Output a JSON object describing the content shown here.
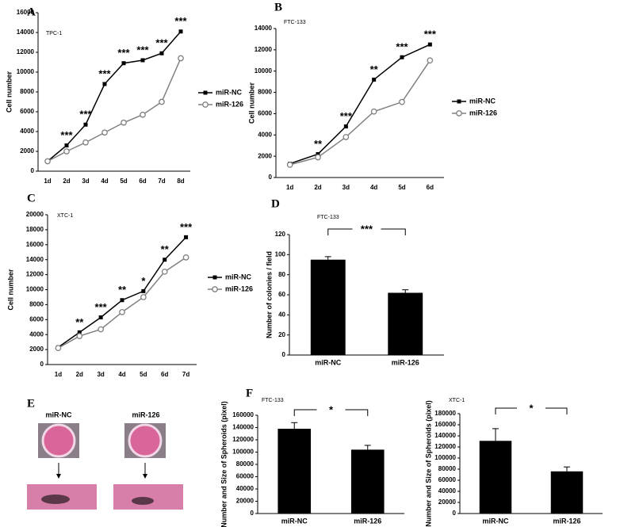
{
  "chart_data": [
    {
      "type": "line",
      "panel": "A",
      "title": "TPC-1",
      "ylabel": "Cell number",
      "categories": [
        "1d",
        "2d",
        "3d",
        "4d",
        "5d",
        "6d",
        "7d",
        "8d"
      ],
      "series": [
        {
          "name": "miR-NC",
          "color": "#000000",
          "marker": "square",
          "values": [
            1000,
            2600,
            4700,
            8800,
            10900,
            11200,
            11900,
            14100
          ]
        },
        {
          "name": "miR-126",
          "color": "#808080",
          "marker": "circle",
          "values": [
            1000,
            2000,
            2900,
            3900,
            4900,
            5700,
            7000,
            11400
          ]
        }
      ],
      "ylim": [
        0,
        16000
      ],
      "yticks": [
        0,
        2000,
        4000,
        6000,
        8000,
        10000,
        12000,
        14000,
        16000
      ],
      "significance": [
        null,
        "***",
        "***",
        "***",
        "***",
        "***",
        "***",
        "***"
      ],
      "legend": "right"
    },
    {
      "type": "line",
      "panel": "B",
      "title": "FTC-133",
      "ylabel": "Cell number",
      "categories": [
        "1d",
        "2d",
        "3d",
        "4d",
        "5d",
        "6d"
      ],
      "series": [
        {
          "name": "miR-NC",
          "color": "#000000",
          "marker": "square",
          "values": [
            1300,
            2200,
            4800,
            9200,
            11300,
            12500
          ]
        },
        {
          "name": "miR-126",
          "color": "#808080",
          "marker": "circle",
          "values": [
            1200,
            1900,
            3800,
            6200,
            7100,
            11000
          ]
        }
      ],
      "ylim": [
        0,
        14000
      ],
      "yticks": [
        0,
        2000,
        4000,
        6000,
        8000,
        10000,
        12000,
        14000
      ],
      "significance": [
        null,
        "**",
        "***",
        "**",
        "***",
        "***"
      ],
      "legend": "right"
    },
    {
      "type": "line",
      "panel": "C",
      "title": "XTC-1",
      "ylabel": "Cell number",
      "categories": [
        "1d",
        "2d",
        "3d",
        "4d",
        "5d",
        "6d",
        "7d"
      ],
      "series": [
        {
          "name": "miR-NC",
          "color": "#000000",
          "marker": "square",
          "values": [
            2300,
            4300,
            6300,
            8600,
            9800,
            14000,
            17000
          ]
        },
        {
          "name": "miR-126",
          "color": "#808080",
          "marker": "circle",
          "values": [
            2200,
            3800,
            4700,
            7000,
            9000,
            12400,
            14300
          ]
        }
      ],
      "ylim": [
        0,
        20000
      ],
      "yticks": [
        0,
        2000,
        4000,
        6000,
        8000,
        10000,
        12000,
        14000,
        16000,
        18000,
        20000
      ],
      "significance": [
        null,
        "**",
        "***",
        "**",
        "*",
        "**",
        "***"
      ],
      "legend": "right"
    },
    {
      "type": "bar",
      "panel": "D",
      "title": "FTC-133",
      "ylabel": "Number of colonies / field",
      "categories": [
        "miR-NC",
        "miR-126"
      ],
      "values": [
        95,
        62
      ],
      "errors": [
        3,
        3
      ],
      "color": "#000000",
      "ylim": [
        0,
        120
      ],
      "yticks": [
        0,
        20,
        40,
        60,
        80,
        100,
        120
      ],
      "significance": "***"
    },
    {
      "type": "bar",
      "panel": "F",
      "title": "FTC-133",
      "ylabel": "Number and Size of Spheroids (pixel)",
      "categories": [
        "miR-NC",
        "miR-126"
      ],
      "values": [
        138000,
        104000
      ],
      "errors": [
        10000,
        7000
      ],
      "color": "#000000",
      "ylim": [
        0,
        160000
      ],
      "yticks": [
        0,
        20000,
        40000,
        60000,
        80000,
        100000,
        120000,
        140000,
        160000
      ],
      "significance": "*"
    },
    {
      "type": "bar",
      "title": "XTC-1",
      "ylabel": "Number and Size of Spheroids (pixel)",
      "categories": [
        "miR-NC",
        "miR-126"
      ],
      "values": [
        131000,
        76000
      ],
      "errors": [
        22000,
        8000
      ],
      "color": "#000000",
      "ylim": [
        0,
        180000
      ],
      "yticks": [
        0,
        20000,
        40000,
        60000,
        80000,
        100000,
        120000,
        140000,
        160000,
        180000
      ],
      "significance": "*"
    }
  ],
  "panel_e": {
    "panel": "E",
    "labels": [
      "miR-NC",
      "miR-126"
    ]
  }
}
